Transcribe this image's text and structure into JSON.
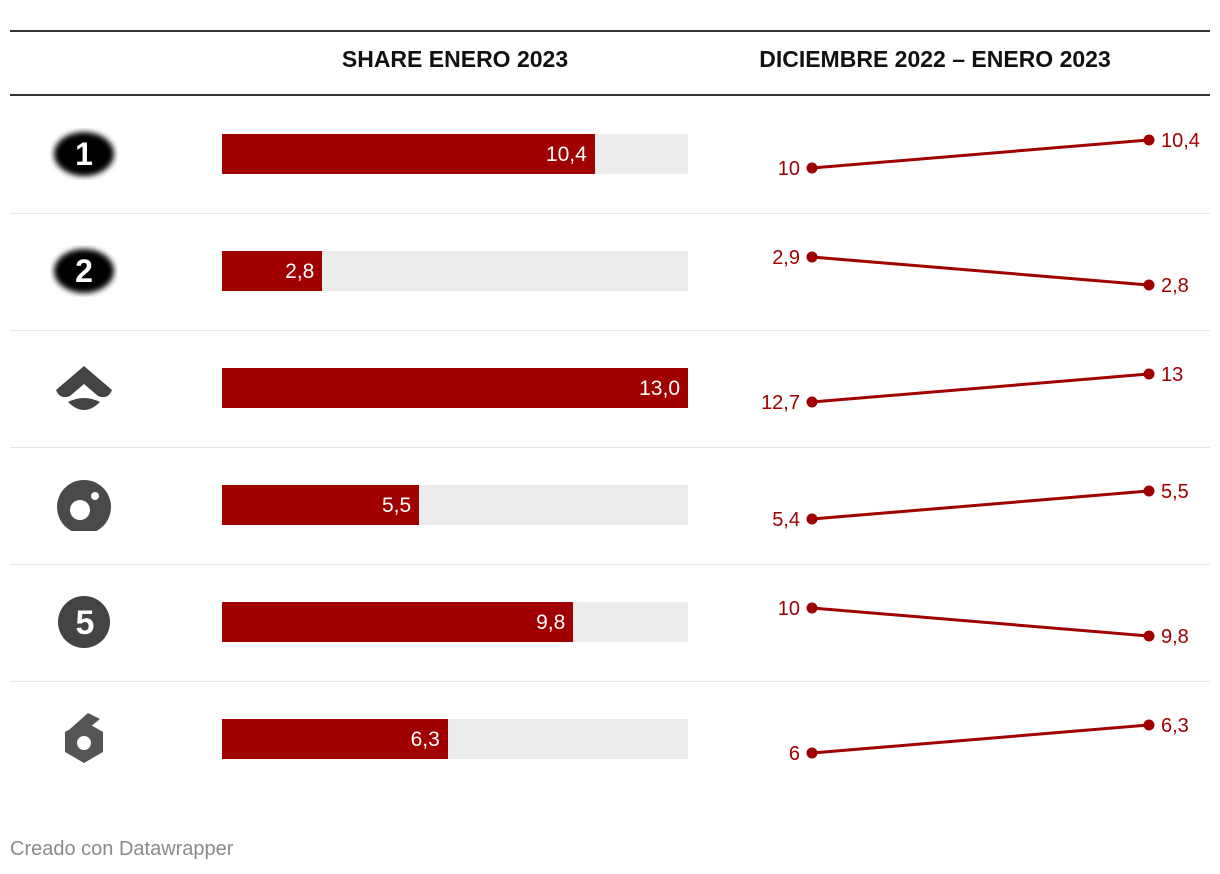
{
  "headers": {
    "share": "SHARE ENERO 2023",
    "change": "DICIEMBRE 2022 – ENERO 2023"
  },
  "footer": "Creado con Datawrapper",
  "colors": {
    "accent": "#a10000",
    "track": "#ececec",
    "logo": "#444444"
  },
  "chart_data": [
    {
      "type": "bar",
      "title": "SHARE ENERO 2023",
      "categories": [
        "La 1",
        "La 2",
        "Antena 3",
        "Cuatro",
        "Telecinco",
        "laSexta"
      ],
      "values": [
        10.4,
        2.8,
        13.0,
        5.5,
        9.8,
        6.3
      ],
      "labels": [
        "10,4",
        "2,8",
        "13,0",
        "5,5",
        "9,8",
        "6,3"
      ],
      "xlim": [
        0,
        13
      ]
    },
    {
      "type": "line",
      "title": "DICIEMBRE 2022 – ENERO 2023",
      "categories": [
        "La 1",
        "La 2",
        "Antena 3",
        "Cuatro",
        "Telecinco",
        "laSexta"
      ],
      "series": [
        {
          "name": "Diciembre 2022",
          "values": [
            10,
            2.9,
            12.7,
            5.4,
            10,
            6
          ],
          "labels": [
            "10",
            "2,9",
            "12,7",
            "5,4",
            "10",
            "6"
          ]
        },
        {
          "name": "Enero 2023",
          "values": [
            10.4,
            2.8,
            13,
            5.5,
            9.8,
            6.3
          ],
          "labels": [
            "10,4",
            "2,8",
            "13",
            "5,5",
            "9,8",
            "6,3"
          ]
        }
      ]
    }
  ],
  "rows": [
    {
      "channel": "La 1",
      "logo_icon": "la1-logo-icon",
      "logo_text": "1"
    },
    {
      "channel": "La 2",
      "logo_icon": "la2-logo-icon",
      "logo_text": "2"
    },
    {
      "channel": "Antena 3",
      "logo_icon": "antena3-logo-icon"
    },
    {
      "channel": "Cuatro",
      "logo_icon": "cuatro-logo-icon"
    },
    {
      "channel": "Telecinco",
      "logo_icon": "telecinco-logo-icon",
      "logo_text": "5"
    },
    {
      "channel": "laSexta",
      "logo_icon": "lasexta-logo-icon",
      "logo_text": "6"
    }
  ]
}
